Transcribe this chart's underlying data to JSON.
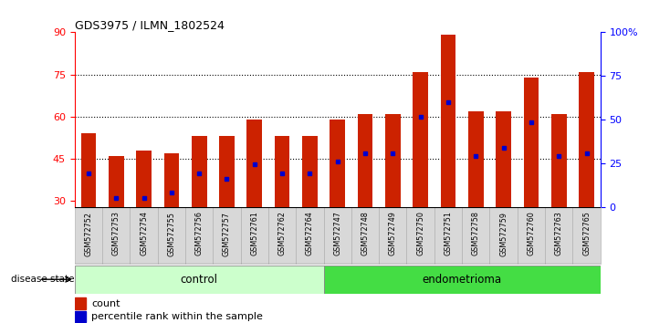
{
  "title": "GDS3975 / ILMN_1802524",
  "samples": [
    "GSM572752",
    "GSM572753",
    "GSM572754",
    "GSM572755",
    "GSM572756",
    "GSM572757",
    "GSM572761",
    "GSM572762",
    "GSM572764",
    "GSM572747",
    "GSM572748",
    "GSM572749",
    "GSM572750",
    "GSM572751",
    "GSM572758",
    "GSM572759",
    "GSM572760",
    "GSM572763",
    "GSM572765"
  ],
  "counts": [
    54,
    46,
    48,
    47,
    53,
    53,
    59,
    53,
    53,
    59,
    61,
    61,
    76,
    89,
    62,
    62,
    74,
    61,
    76
  ],
  "percentile_ranks": [
    40,
    31,
    31,
    33,
    40,
    38,
    43,
    40,
    40,
    44,
    47,
    47,
    60,
    65,
    46,
    49,
    58,
    46,
    47
  ],
  "groups": [
    "control",
    "control",
    "control",
    "control",
    "control",
    "control",
    "control",
    "control",
    "control",
    "endometrioma",
    "endometrioma",
    "endometrioma",
    "endometrioma",
    "endometrioma",
    "endometrioma",
    "endometrioma",
    "endometrioma",
    "endometrioma",
    "endometrioma"
  ],
  "bar_color": "#cc2200",
  "marker_color": "#0000cc",
  "control_color": "#ccffcc",
  "endometrioma_color": "#44dd44",
  "tick_bg_color": "#d8d8d8",
  "ylim_left": [
    28,
    90
  ],
  "ylim_right": [
    0,
    100
  ],
  "yticks_left": [
    30,
    45,
    60,
    75,
    90
  ],
  "yticks_right": [
    0,
    25,
    50,
    75,
    100
  ],
  "ytick_labels_right": [
    "0",
    "25",
    "50",
    "75",
    "100%"
  ],
  "grid_ticks": [
    45,
    60,
    75
  ],
  "background_color": "#ffffff",
  "bar_width": 0.55,
  "n_control": 9,
  "n_endo": 10
}
